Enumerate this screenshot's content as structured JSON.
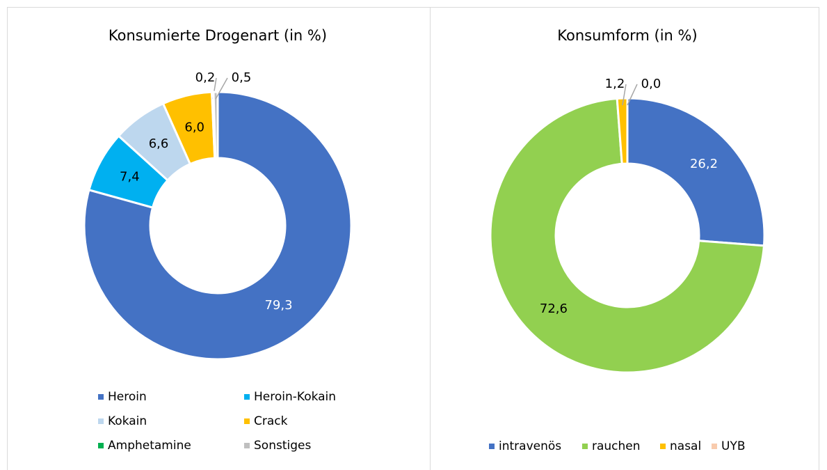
{
  "chart_data": [
    {
      "type": "donut",
      "title": "Konsumierte Drogenart (in %)",
      "categories": [
        "Heroin",
        "Heroin-Kokain",
        "Kokain",
        "Crack",
        "Amphetamine",
        "Sonstiges"
      ],
      "values": [
        79.3,
        7.4,
        6.6,
        6.0,
        0.2,
        0.5
      ],
      "value_labels": [
        "79,3",
        "7,4",
        "6,6",
        "6,0",
        "0,2",
        "0,5"
      ],
      "colors": [
        "#4472c4",
        "#00b0f0",
        "#bdd7ee",
        "#ffc000",
        "#00b050",
        "#bfbfbf"
      ]
    },
    {
      "type": "donut",
      "title": "Konsumform (in %)",
      "categories": [
        "intravenös",
        "rauchen",
        "nasal",
        "UYB"
      ],
      "values": [
        26.2,
        72.6,
        1.2,
        0.0
      ],
      "value_labels": [
        "26,2",
        "72,6",
        "1,2",
        "0,0"
      ],
      "colors": [
        "#4472c4",
        "#92d050",
        "#ffc000",
        "#f8cbad"
      ]
    }
  ]
}
